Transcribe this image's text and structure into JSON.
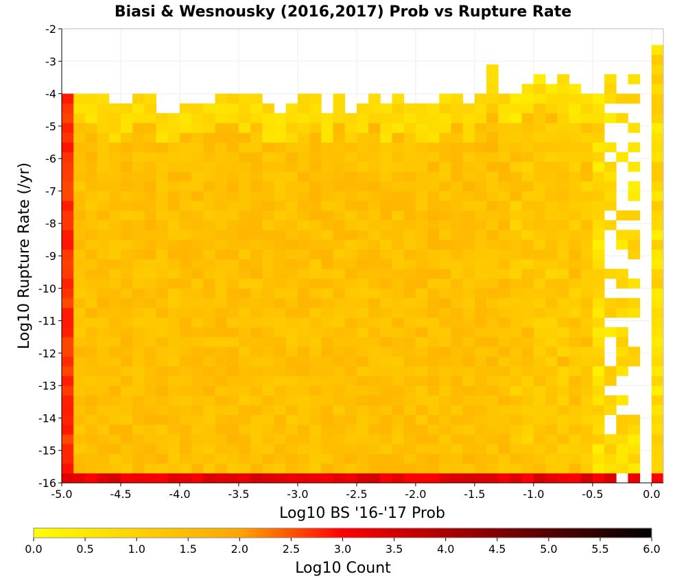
{
  "chart_data": {
    "type": "heatmap",
    "title": "Biasi & Wesnousky (2016,2017) Prob vs Rupture Rate",
    "xlabel": "Log10 BS '16-'17 Prob",
    "ylabel": "Log10 Rupture Rate (/yr)",
    "xlim": [
      -5.0,
      0.1
    ],
    "ylim": [
      -16,
      -2
    ],
    "bin_width_x": 0.1,
    "bin_height_y": 0.3,
    "grid": true,
    "x_ticks": [
      "-5.0",
      "-4.5",
      "-4.0",
      "-3.5",
      "-3.0",
      "-2.5",
      "-2.0",
      "-1.5",
      "-1.0",
      "-0.5",
      "0.0"
    ],
    "x_tick_values": [
      -5.0,
      -4.5,
      -4.0,
      -3.5,
      -3.0,
      -2.5,
      -2.0,
      -1.5,
      -1.0,
      -0.5,
      0.0
    ],
    "y_ticks": [
      "-2",
      "-3",
      "-4",
      "-5",
      "-6",
      "-7",
      "-8",
      "-9",
      "-10",
      "-11",
      "-12",
      "-13",
      "-14",
      "-15",
      "-16"
    ],
    "y_tick_values": [
      -2,
      -3,
      -4,
      -5,
      -6,
      -7,
      -8,
      -9,
      -10,
      -11,
      -12,
      -13,
      -14,
      -15,
      -16
    ],
    "colorbar": {
      "label": "Log10 Count",
      "range": [
        0,
        6
      ],
      "ticks": [
        "0.0",
        "0.5",
        "1.0",
        "1.5",
        "2.0",
        "2.5",
        "3.0",
        "3.5",
        "4.0",
        "4.5",
        "5.0",
        "5.5",
        "6.0"
      ],
      "tick_values": [
        0,
        0.5,
        1.0,
        1.5,
        2.0,
        2.5,
        3.0,
        3.5,
        4.0,
        4.5,
        5.0,
        5.5,
        6.0
      ],
      "colors": [
        "#ffff00",
        "#ffa500",
        "#ff0000",
        "#000000"
      ],
      "placement": "bottom"
    },
    "description_of_values": {
      "bottom_row_y_-16": 3.0,
      "left_column_x_-5.0": 2.7,
      "typical_interior": 1.4,
      "upper_edge_y": -4.2,
      "sparse_columns_above_x_-0.5": 0.6
    }
  }
}
